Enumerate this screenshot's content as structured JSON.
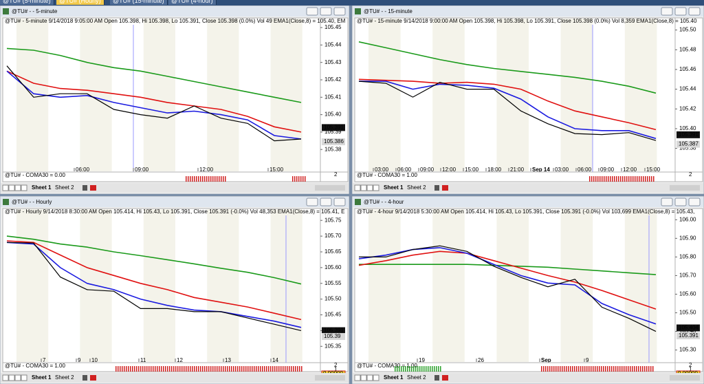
{
  "tabs": [
    "@TU# (5-minute)",
    "@TU# (Hourly)",
    "@TU# (15-minute)",
    "@TU# (4-hour)"
  ],
  "windows": [
    {
      "title": "@TU# - - 5-minute",
      "header": "@TU# - 5-minute 9/14/2018 9:05:00 AM Open 105.398, Hi 105.398, Lo 105.391, Close 105.398 (0.0%) Vol 49 EMA1(Close,8) = 105.40, EM",
      "ylim": [
        105.371,
        105.452
      ],
      "yticks": [
        105.45,
        105.44,
        105.43,
        105.42,
        105.41,
        {
          "value": 105.4,
          "label": "105.40"
        },
        105.39,
        105.38
      ],
      "xlabels": [
        "06:00",
        "09:00",
        "12:00",
        "15:00"
      ],
      "price_tags": [
        105.391,
        105.386
      ],
      "indicator": "@TU# - COMA30 = 0.00",
      "indicator_axis": [
        "2"
      ],
      "sheets": [
        "Sheet 1",
        "Sheet 2"
      ],
      "series": [
        {
          "color": "#1a9a1a",
          "values": [
            105.438,
            105.437,
            105.434,
            105.43,
            105.427,
            105.425,
            105.422,
            105.419,
            105.416,
            105.413,
            105.41,
            105.407
          ]
        },
        {
          "color": "#e01010",
          "values": [
            105.425,
            105.418,
            105.415,
            105.414,
            105.412,
            105.41,
            105.407,
            105.405,
            105.403,
            105.399,
            105.393,
            105.39
          ]
        },
        {
          "color": "#1a1ae0",
          "values": [
            105.425,
            105.412,
            105.41,
            105.411,
            105.407,
            105.404,
            105.401,
            105.402,
            105.4,
            105.397,
            105.388,
            105.386
          ]
        },
        {
          "color": "#000000",
          "values": [
            105.428,
            105.41,
            105.412,
            105.412,
            105.403,
            105.4,
            105.398,
            105.405,
            105.398,
            105.395,
            105.385,
            105.386
          ]
        }
      ]
    },
    {
      "title": "@TU# - - 15-minute",
      "header": "@TU# - 15-minute 9/14/2018 9:00:00 AM Open 105.398, Hi 105.398, Lo 105.391, Close 105.398 (0.0%) Vol 8,359 EMA1(Close,8) = 105.40",
      "ylim": [
        105.363,
        105.506
      ],
      "yticks": [
        {
          "value": 105.5,
          "label": "105.50"
        },
        105.48,
        105.46,
        105.44,
        105.42,
        {
          "value": 105.4,
          "label": "105.40"
        },
        105.38
      ],
      "xlabels": [
        "03:00",
        "06:00",
        "09:00",
        "12:00",
        "15:00",
        "18:00",
        "21:00",
        "Sep 14",
        "03:00",
        "06:00",
        "09:00",
        "12:00",
        "15:00"
      ],
      "price_tags": [
        105.391,
        105.387
      ],
      "indicator": "@TU# - COMA30 = 1.00",
      "indicator_axis": [
        "2"
      ],
      "sheets": [
        "Sheet 1",
        "Sheet 2"
      ],
      "series": [
        {
          "color": "#1a9a1a",
          "values": [
            105.488,
            105.482,
            105.476,
            105.47,
            105.465,
            105.461,
            105.458,
            105.455,
            105.452,
            105.448,
            105.443,
            105.436
          ]
        },
        {
          "color": "#e01010",
          "values": [
            105.45,
            105.449,
            105.448,
            105.446,
            105.447,
            105.445,
            105.44,
            105.428,
            105.418,
            105.412,
            105.406,
            105.399
          ]
        },
        {
          "color": "#1a1ae0",
          "values": [
            105.448,
            105.448,
            105.44,
            105.445,
            105.444,
            105.441,
            105.43,
            105.412,
            105.4,
            105.398,
            105.398,
            105.39
          ]
        },
        {
          "color": "#000000",
          "values": [
            105.448,
            105.446,
            105.432,
            105.447,
            105.44,
            105.44,
            105.418,
            105.405,
            105.395,
            105.394,
            105.396,
            105.388
          ]
        }
      ]
    },
    {
      "title": "@TU# - - Hourly",
      "header": "@TU# - Hourly 9/14/2018 8:30:00 AM Open 105.414, Hi 105.43, Lo 105.391, Close 105.391 (-0.0%) Vol 48,353 EMA1(Close,8) = 105.41, E",
      "ylim": [
        105.32,
        105.768
      ],
      "yticks": [
        105.75,
        {
          "value": 105.7,
          "label": "105.70"
        },
        105.65,
        {
          "value": 105.6,
          "label": "105.60"
        },
        105.55,
        {
          "value": 105.5,
          "label": "105.50"
        },
        105.45,
        {
          "value": 105.4,
          "label": "105.40"
        },
        105.35
      ],
      "xlabels": [
        "7",
        "9",
        "10",
        "11",
        "12",
        "13",
        "14"
      ],
      "price_tags": [
        105.391,
        105.39
      ],
      "indicator": "@TU# - COMA30 = 1.00",
      "indicator_axis": [
        "2",
        "1",
        "0.00000"
      ],
      "sheets": [
        "Sheet 1",
        "Sheet 2"
      ],
      "series": [
        {
          "color": "#1a9a1a",
          "values": [
            105.7,
            105.69,
            105.675,
            105.665,
            105.65,
            105.638,
            105.625,
            105.612,
            105.598,
            105.585,
            105.568,
            105.548
          ]
        },
        {
          "color": "#e01010",
          "values": [
            105.685,
            105.68,
            105.64,
            105.6,
            105.575,
            105.55,
            105.53,
            105.505,
            105.49,
            105.475,
            105.455,
            105.435
          ]
        },
        {
          "color": "#1a1ae0",
          "values": [
            105.68,
            105.675,
            105.6,
            105.55,
            105.53,
            105.5,
            105.48,
            105.465,
            105.46,
            105.445,
            105.43,
            105.41
          ]
        },
        {
          "color": "#000000",
          "values": [
            105.68,
            105.678,
            105.57,
            105.53,
            105.525,
            105.47,
            105.47,
            105.46,
            105.46,
            105.44,
            105.42,
            105.4
          ]
        }
      ]
    },
    {
      "title": "@TU# - - 4-hour",
      "header": "@TU# - 4-hour 9/14/2018 5:30:00 AM Open 105.414, Hi 105.43, Lo 105.391, Close 105.391 (-0.0%) Vol 103,699 EMA1(Close,8) = 105.43,",
      "ylim": [
        105.269,
        106.027
      ],
      "yticks": [
        {
          "value": 106,
          "label": "106.00"
        },
        {
          "value": 105.9,
          "label": "105.90"
        },
        {
          "value": 105.8,
          "label": "105.80"
        },
        {
          "value": 105.7,
          "label": "105.70"
        },
        {
          "value": 105.6,
          "label": "105.60"
        },
        {
          "value": 105.5,
          "label": "105.50"
        },
        {
          "value": 105.4,
          "label": "105.40"
        },
        {
          "value": 105.3,
          "label": "105.30"
        }
      ],
      "xlabels": [
        "19",
        "26",
        "Sep",
        "9"
      ],
      "price_tags": [
        105.404,
        105.391
      ],
      "indicator": "@TU# - COMA30 = 1.00",
      "indicator_axis": [
        "2",
        "1",
        "0.00000"
      ],
      "sheets": [
        "Sheet 1",
        "Sheet 2"
      ],
      "series": [
        {
          "color": "#1a9a1a",
          "values": [
            105.76,
            105.76,
            105.76,
            105.76,
            105.76,
            105.755,
            105.75,
            105.745,
            105.735,
            105.725,
            105.715,
            105.705
          ]
        },
        {
          "color": "#e01010",
          "values": [
            105.755,
            105.78,
            105.81,
            105.83,
            105.82,
            105.78,
            105.74,
            105.7,
            105.665,
            105.62,
            105.57,
            105.52
          ]
        },
        {
          "color": "#1a1ae0",
          "values": [
            105.79,
            105.81,
            105.84,
            105.85,
            105.82,
            105.76,
            105.7,
            105.66,
            105.65,
            105.55,
            105.49,
            105.44
          ]
        },
        {
          "color": "#000000",
          "values": [
            105.8,
            105.8,
            105.84,
            105.86,
            105.83,
            105.75,
            105.69,
            105.64,
            105.68,
            105.53,
            105.47,
            105.4
          ]
        }
      ]
    }
  ]
}
